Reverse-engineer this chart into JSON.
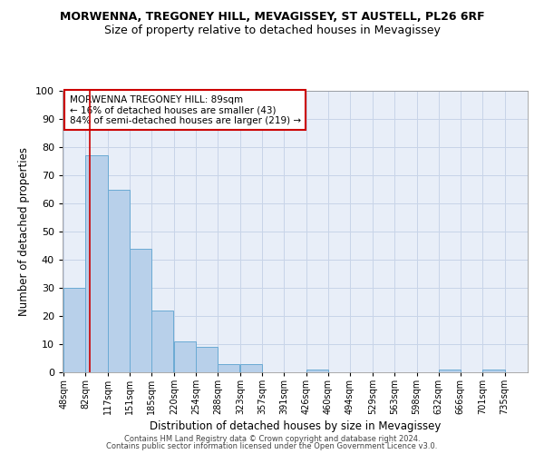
{
  "title1": "MORWENNA, TREGONEY HILL, MEVAGISSEY, ST AUSTELL, PL26 6RF",
  "title2": "Size of property relative to detached houses in Mevagissey",
  "xlabel": "Distribution of detached houses by size in Mevagissey",
  "ylabel": "Number of detached properties",
  "categories": [
    "48sqm",
    "82sqm",
    "117sqm",
    "151sqm",
    "185sqm",
    "220sqm",
    "254sqm",
    "288sqm",
    "323sqm",
    "357sqm",
    "391sqm",
    "426sqm",
    "460sqm",
    "494sqm",
    "529sqm",
    "563sqm",
    "598sqm",
    "632sqm",
    "666sqm",
    "701sqm",
    "735sqm"
  ],
  "values": [
    30,
    77,
    65,
    44,
    22,
    11,
    9,
    3,
    3,
    0,
    0,
    1,
    0,
    0,
    0,
    0,
    0,
    1,
    0,
    1,
    0
  ],
  "bar_color": "#b8d0ea",
  "bar_edge_color": "#6aaad4",
  "bar_edge_width": 0.7,
  "bin_starts": [
    48,
    82,
    117,
    151,
    185,
    220,
    254,
    288,
    323,
    357,
    391,
    426,
    460,
    494,
    529,
    563,
    598,
    632,
    666,
    701,
    735
  ],
  "bin_width": 34,
  "vline_x": 89,
  "vline_color": "#cc0000",
  "annotation_text": "MORWENNA TREGONEY HILL: 89sqm\n← 16% of detached houses are smaller (43)\n84% of semi-detached houses are larger (219) →",
  "annotation_box_color": "#ffffff",
  "annotation_border_color": "#cc0000",
  "ylim": [
    0,
    100
  ],
  "yticks": [
    0,
    10,
    20,
    30,
    40,
    50,
    60,
    70,
    80,
    90,
    100
  ],
  "grid_color": "#c8d4e8",
  "background_color": "#e8eef8",
  "footer1": "Contains HM Land Registry data © Crown copyright and database right 2024.",
  "footer2": "Contains public sector information licensed under the Open Government Licence v3.0.",
  "title1_fontsize": 9,
  "title2_fontsize": 9,
  "xlabel_fontsize": 8.5,
  "ylabel_fontsize": 8.5,
  "xtick_fontsize": 7,
  "ytick_fontsize": 8,
  "annotation_fontsize": 7.5,
  "footer_fontsize": 6
}
